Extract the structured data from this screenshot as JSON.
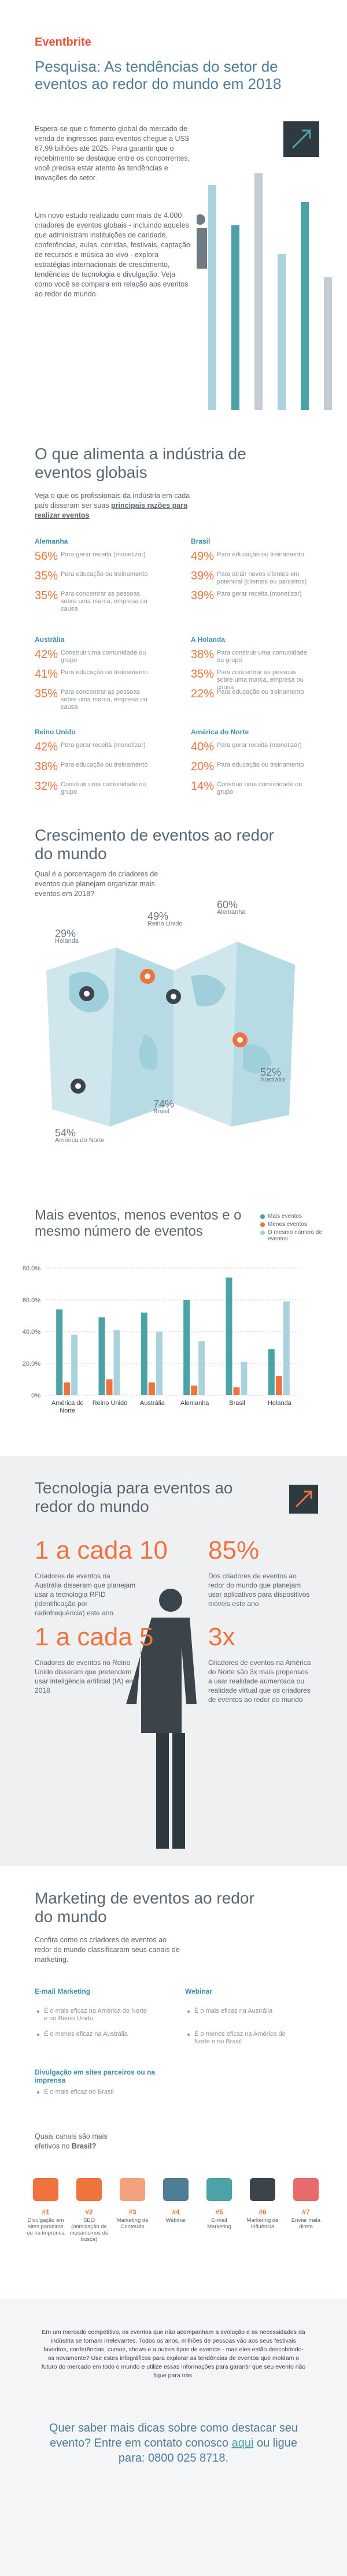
{
  "header": {
    "logo": "Eventbrite",
    "title": "Pesquisa: As tendências do setor de eventos ao redor do mundo em 2018",
    "paragraphs": [
      "Espera-se que o fomento global do mercado de venda de ingressos para eventos chegue a US$ 67,99 bilhões até 2025. Para garantir que o recebimento se destaque entre os concorrentes, você precisa estar atento às tendências e inovações do setor.",
      "Um novo estudo realizado com mais de 4.000 criadores de eventos globais - incluindo aqueles que administram instituições de caridade, conferências, aulas, corridas, festivais, captação de recursos e música ao vivo - explora estratégias internacionais de crescimento, tendências de tecnologia e divulgação. Veja como você se compara em relação aos eventos ao redor do mundo."
    ]
  },
  "drivers": {
    "title": "O que alimenta a indústria de eventos globais",
    "intro": "Veja o que os profissionais da indústria em cada país disseram ser suas",
    "intro_bold": "principais razões para realizar eventos",
    "regions": [
      {
        "name": "Alemanha",
        "items": [
          {
            "pct": "56%",
            "text": "Para gerar receita (monetizar)"
          },
          {
            "pct": "35%",
            "text": "Para educação ou treinamento"
          },
          {
            "pct": "35%",
            "text": "Para concentrar as pessoas sobre uma marca, empresa ou causa"
          }
        ]
      },
      {
        "name": "Brasil",
        "items": [
          {
            "pct": "49%",
            "text": "Para educação ou treinamento"
          },
          {
            "pct": "39%",
            "text": "Para atrair novos clientes em potencial (clientes ou parceiros)"
          },
          {
            "pct": "39%",
            "text": "Para gerar receita (monetizar)"
          }
        ]
      },
      {
        "name": "Austrália",
        "items": [
          {
            "pct": "42%",
            "text": "Construir uma comunidade ou grupo"
          },
          {
            "pct": "41%",
            "text": "Para educação ou treinamento"
          },
          {
            "pct": "35%",
            "text": "Para concentrar as pessoas sobre uma marca, empresa ou causa"
          }
        ]
      },
      {
        "name": "A Holanda",
        "items": [
          {
            "pct": "38%",
            "text": "Para construir uma comunidade ou grupo"
          },
          {
            "pct": "35%",
            "text": "Para concentrar as pessoas sobre uma marca, empresa ou causa"
          },
          {
            "pct": "22%",
            "text": "Para educação ou treinamento"
          }
        ]
      },
      {
        "name": "Reino Unido",
        "items": [
          {
            "pct": "42%",
            "text": "Para gerar receita (monetizar)"
          },
          {
            "pct": "38%",
            "text": "Para educação ou treinamento"
          },
          {
            "pct": "32%",
            "text": "Construir uma comunidade ou grupo"
          }
        ]
      },
      {
        "name": "América do Norte",
        "items": [
          {
            "pct": "40%",
            "text": "Para gerar receita (monetizar)"
          },
          {
            "pct": "20%",
            "text": "Para educação ou treinamento"
          },
          {
            "pct": "14%",
            "text": "Construir uma comunidade ou grupo"
          }
        ]
      }
    ]
  },
  "growth": {
    "title": "Crescimento de eventos ao redor do mundo",
    "question": "Qual é a porcentagem de criadores de eventos que planejam organizar mais eventos em 2018?",
    "labels": [
      {
        "pct": "29%",
        "region": "Holanda"
      },
      {
        "pct": "49%",
        "region": "Reino Unido"
      },
      {
        "pct": "60%",
        "region": "Alemanha"
      },
      {
        "pct": "52%",
        "region": "Austrália"
      },
      {
        "pct": "74%",
        "region": "Brasil"
      },
      {
        "pct": "54%",
        "region": "América do Norte"
      }
    ]
  },
  "chart_data": {
    "type": "bar",
    "title": "Mais eventos, menos eventos e o mesmo número de eventos",
    "categories": [
      "América do Norte",
      "Reino Unido",
      "Austrália",
      "Alemanha",
      "Brasil",
      "Holanda"
    ],
    "series": [
      {
        "name": "Mais eventos",
        "color": "#4ba3a8",
        "values": [
          54,
          49,
          52,
          60,
          74,
          29
        ]
      },
      {
        "name": "Menos eventos",
        "color": "#f0733d",
        "values": [
          8,
          10,
          8,
          6,
          5,
          12
        ]
      },
      {
        "name": "O mesmo número de eventos",
        "color": "#a9d3dc",
        "values": [
          38,
          41,
          40,
          34,
          21,
          59
        ]
      }
    ],
    "ylim": [
      0,
      80
    ],
    "yticks": [
      {
        "value": 0,
        "label": "0%"
      },
      {
        "value": 20,
        "label": "20.0%"
      },
      {
        "value": 40,
        "label": "40.0%"
      },
      {
        "value": 60,
        "label": "60.0%"
      },
      {
        "value": 80,
        "label": "80.0%"
      }
    ],
    "grid": true,
    "legend": "top-right"
  },
  "technology": {
    "title": "Tecnologia para eventos ao redor do mundo",
    "stats": [
      {
        "figure": "1 a cada 10",
        "text": "Criadores de eventos na Austrália disseram que planejam usar a tecnologia RFID (identificação por radiofrequência) este ano"
      },
      {
        "figure": "85%",
        "text": "Dos criadores de eventos ao redor do mundo que planejam usar aplicativos para dispositivos móveis este ano"
      },
      {
        "figure": "1 a cada 5",
        "text": "Criadores de eventos no Reino Unido disseram que pretendem usar inteligência artificial (IA) em 2018"
      },
      {
        "figure": "3x",
        "text": "Criadores de eventos na América do Norte são 3x mais propensos a usar realidade aumentada ou realidade virtual que os criadores de eventos ao redor do mundo"
      }
    ]
  },
  "marketing": {
    "title": "Marketing de eventos ao redor do mundo",
    "intro": "Confira como os criadores de eventos ao redor do mundo classificaram seus canais de marketing.",
    "channels": [
      {
        "name": "E-mail Marketing",
        "bullets": [
          "É o mais eficaz na América do Norte e no Reino Unido",
          "É o menos eficaz na Austrália"
        ]
      },
      {
        "name": "Webinar",
        "bullets": [
          "É o mais eficaz na Austrália",
          "É o menos eficaz na América do Norte e no Brasil"
        ]
      },
      {
        "name": "Divulgação em sites parceiros ou na imprensa",
        "bullets": [
          "É o mais eficaz no Brasil"
        ]
      }
    ],
    "question": "Quais canais são mais efetivos no",
    "question_bold": "Brasil?",
    "ranking": [
      {
        "rank": "#1",
        "label": "Divulgação em sites parceiros ou na imprensa"
      },
      {
        "rank": "#2",
        "label": "SEO (otimização de mecanismos de busca)"
      },
      {
        "rank": "#3",
        "label": "Marketing de Conteúdo"
      },
      {
        "rank": "#4",
        "label": "Webinar"
      },
      {
        "rank": "#5",
        "label": "E-mail Marketing"
      },
      {
        "rank": "#6",
        "label": "Marketing de Influência"
      },
      {
        "rank": "#7",
        "label": "Enviar mala direta"
      }
    ]
  },
  "footer": {
    "paragraph": "Em um mercado competitivo, os eventos que não acompanham a evolução e as necessidades da indústria se tornam irrelevantes. Todos os anos, milhões de pessoas vão aos seus festivais favoritos, conferências, cursos, shows e a outros tipos de eventos - mas eles estão descobrindo-os novamente? Use estes infográficos para explorar as tendências de eventos que moldam o futuro do mercado em todo o mundo e utilize essas informações para garantir que seu evento não fique para trás.",
    "cta_before": "Quer saber mais dicas sobre como destacar seu evento? Entre em contato conosco",
    "cta_link": "aqui",
    "cta_after": "ou ligue para: 0800 025 8718."
  }
}
